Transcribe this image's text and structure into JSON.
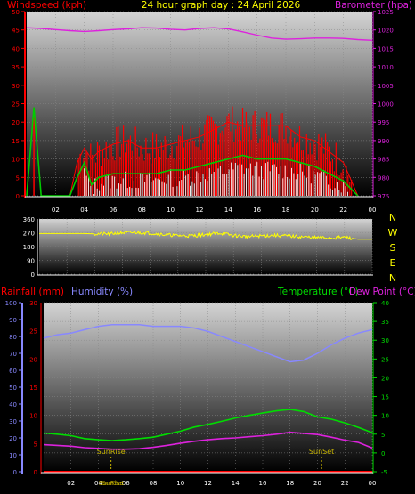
{
  "header": {
    "title": "24 hour graph day : 24 April 2026",
    "left_label": "Windspeed (kph)",
    "right_label": "Barometer (hpa)"
  },
  "colors": {
    "wind_gust": "#ff0000",
    "wind_avg": "#00cc00",
    "wind_direction": "#ffff00",
    "barometer": "#dd22dd",
    "humidity": "#8888ff",
    "temperature": "#00dd00",
    "dewpoint": "#dd22dd",
    "rainfall": "#ff0000",
    "sun_marker": "#c8b400",
    "compass": "#ffff00",
    "left_wind_axis": "#ff0000",
    "right_baro_axis": "#dd22dd",
    "humidity_axis": "#8888ff",
    "temp_axis": "#00dd00",
    "background_top": "#d8d8d8",
    "background_bottom": "#000000"
  },
  "compass_labels": [
    "N",
    "W",
    "S",
    "E",
    "N"
  ],
  "chart_data": [
    {
      "type": "line",
      "name": "wind-barometer",
      "title": "24 hour graph day : 24 April 2026",
      "xlabel": "",
      "ylabel": "Windspeed (kph)",
      "y2label": "Barometer (hpa)",
      "x_ticks": [
        "02",
        "04",
        "06",
        "08",
        "10",
        "12",
        "14",
        "16",
        "18",
        "20",
        "22",
        "00"
      ],
      "ylim": [
        0,
        50
      ],
      "yticks": [
        0,
        5,
        10,
        15,
        20,
        25,
        30,
        35,
        40,
        45,
        50
      ],
      "y2lim": [
        975,
        1025
      ],
      "y2ticks": [
        975,
        980,
        985,
        990,
        995,
        1000,
        1005,
        1010,
        1015,
        1020,
        1025
      ],
      "grid": true,
      "series": [
        {
          "name": "Windspeed",
          "x": [
            0,
            0.5,
            1,
            2,
            3,
            3.5,
            4,
            4.5,
            5,
            6,
            7,
            8,
            9,
            10,
            11,
            12,
            13,
            14,
            15,
            16,
            17,
            18,
            19,
            20,
            21,
            22,
            23
          ],
          "y": [
            0,
            24,
            0,
            0,
            0,
            5,
            9,
            3,
            5,
            6,
            6,
            6,
            6,
            7,
            7,
            8,
            9,
            10,
            11,
            10,
            10,
            10,
            9,
            8,
            6,
            4,
            0
          ]
        },
        {
          "name": "Gust",
          "x": [
            0,
            0.5,
            1,
            2,
            3,
            3.5,
            4,
            4.5,
            5,
            6,
            7,
            8,
            9,
            10,
            11,
            12,
            13,
            14,
            15,
            16,
            17,
            18,
            19,
            20,
            21,
            22,
            23
          ],
          "y": [
            0,
            24,
            0,
            0,
            0,
            9,
            13,
            10,
            12,
            14,
            15,
            13,
            13,
            14,
            15,
            16,
            18,
            20,
            19,
            19,
            19,
            19,
            16,
            15,
            12,
            9,
            0
          ]
        },
        {
          "name": "Barometer",
          "axis": "y2",
          "x": [
            0,
            1,
            2,
            3,
            4,
            5,
            6,
            7,
            8,
            9,
            10,
            11,
            12,
            13,
            14,
            15,
            16,
            17,
            18,
            19,
            20,
            21,
            22,
            23,
            24
          ],
          "y": [
            1020.6,
            1020.4,
            1020.1,
            1019.8,
            1019.6,
            1019.8,
            1020.1,
            1020.3,
            1020.6,
            1020.5,
            1020.2,
            1020.0,
            1020.4,
            1020.6,
            1020.3,
            1019.5,
            1018.6,
            1017.8,
            1017.5,
            1017.6,
            1017.8,
            1017.8,
            1017.7,
            1017.4,
            1017.2
          ]
        }
      ]
    },
    {
      "type": "line",
      "name": "wind-direction",
      "xlabel": "",
      "ylabel": "",
      "ylim": [
        0,
        360
      ],
      "yticks": [
        0,
        90,
        180,
        270,
        360
      ],
      "grid": true,
      "series": [
        {
          "name": "Wind Direction",
          "x": [
            0,
            1,
            2,
            3,
            4,
            5,
            6,
            7,
            8,
            9,
            10,
            11,
            12,
            13,
            14,
            15,
            16,
            17,
            18,
            19,
            20,
            21,
            22,
            23,
            24
          ],
          "y": [
            265,
            265,
            265,
            265,
            263,
            262,
            270,
            272,
            268,
            258,
            252,
            250,
            258,
            268,
            252,
            245,
            250,
            253,
            248,
            243,
            238,
            236,
            240,
            228,
            228
          ]
        }
      ]
    },
    {
      "type": "line",
      "name": "temperature-humidity",
      "xlabel": "",
      "ylabel": "Rainfall (mm) Humidity (%)",
      "y2label": "Temperature (°C)Dew Point (°C)",
      "x_ticks": [
        "02",
        "04",
        "06",
        "08",
        "10",
        "12",
        "14",
        "16",
        "18",
        "20",
        "22",
        "00"
      ],
      "rain_ylim": [
        0,
        30
      ],
      "rain_yticks": [
        0,
        5,
        10,
        15,
        20,
        25,
        30
      ],
      "humidity_ylim": [
        0,
        100
      ],
      "humidity_yticks": [
        0,
        10,
        20,
        30,
        40,
        50,
        60,
        70,
        80,
        90,
        100
      ],
      "temp_ylim": [
        -5,
        40
      ],
      "temp_yticks": [
        -5,
        0,
        5,
        10,
        15,
        20,
        25,
        30,
        35,
        40
      ],
      "annotations": [
        {
          "label": "SunRise",
          "x": 4.92
        },
        {
          "label": "SunSet",
          "x": 20.3
        }
      ],
      "bottom_labels": [
        "SunRise",
        "SunSet"
      ],
      "grid": true,
      "series": [
        {
          "name": "Humidity",
          "axis": "humidity",
          "x": [
            0,
            1,
            2,
            3,
            4,
            5,
            6,
            7,
            8,
            9,
            10,
            11,
            12,
            13,
            14,
            15,
            16,
            17,
            18,
            19,
            20,
            21,
            22,
            23,
            24
          ],
          "y": [
            79,
            81,
            82,
            84,
            86,
            87,
            87,
            87,
            86,
            86,
            86,
            85,
            83,
            80,
            77,
            74,
            71,
            68,
            65,
            66,
            70,
            75,
            79,
            82,
            84
          ]
        },
        {
          "name": "Temperature",
          "axis": "temp",
          "x": [
            0,
            1,
            2,
            3,
            4,
            5,
            6,
            7,
            8,
            9,
            10,
            11,
            12,
            13,
            14,
            15,
            16,
            17,
            18,
            19,
            20,
            21,
            22,
            23,
            24
          ],
          "y": [
            5.3,
            5.0,
            4.6,
            3.8,
            3.5,
            3.3,
            3.5,
            3.8,
            4.2,
            5.0,
            5.8,
            6.9,
            7.6,
            8.4,
            9.3,
            10.0,
            10.6,
            11.2,
            11.6,
            11.0,
            9.6,
            9.0,
            8.0,
            6.8,
            5.4
          ]
        },
        {
          "name": "Dew Point",
          "axis": "temp",
          "x": [
            0,
            1,
            2,
            3,
            4,
            5,
            6,
            7,
            8,
            9,
            10,
            11,
            12,
            13,
            14,
            15,
            16,
            17,
            18,
            19,
            20,
            21,
            22,
            23,
            24
          ],
          "y": [
            2.2,
            2.0,
            1.8,
            1.4,
            1.2,
            1.0,
            1.0,
            1.1,
            1.5,
            2.0,
            2.6,
            3.1,
            3.5,
            3.8,
            4.0,
            4.3,
            4.6,
            5.0,
            5.5,
            5.2,
            4.9,
            4.2,
            3.4,
            2.8,
            1.3
          ]
        },
        {
          "name": "Rainfall",
          "axis": "rain",
          "x": [
            0,
            24
          ],
          "y": [
            0,
            0
          ]
        }
      ]
    }
  ]
}
